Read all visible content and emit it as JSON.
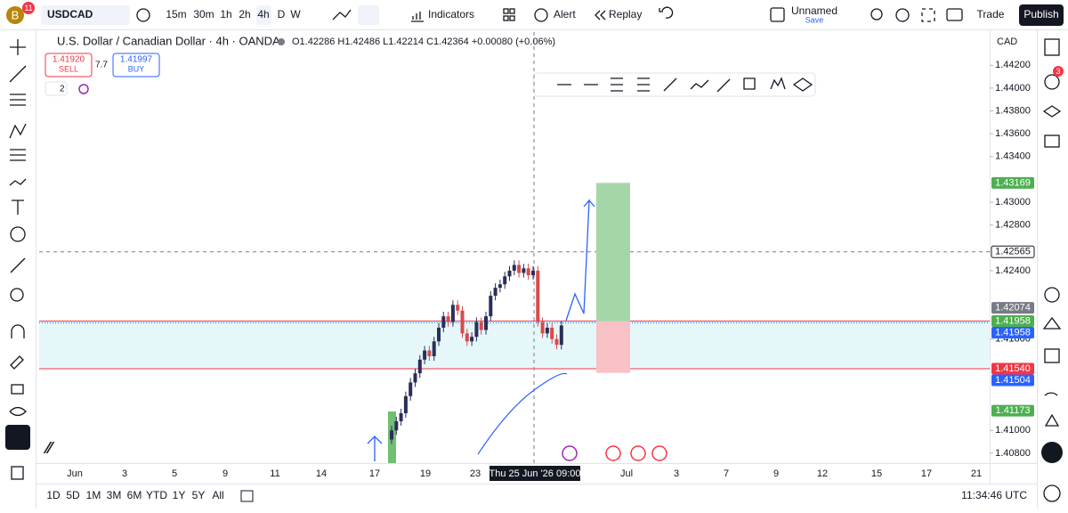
{
  "toolbar": {
    "avatar": "B",
    "badge": "11",
    "symbol": "USDCAD",
    "timeframes": [
      "15m",
      "30m",
      "1h",
      "2h",
      "4h",
      "D",
      "W"
    ],
    "active_timeframe": "4h",
    "indicators": "Indicators",
    "alert": "Alert",
    "replay": "Replay",
    "layout_name": "Unnamed",
    "save": "Save",
    "trade": "Trade",
    "publish": "Publish",
    "alerts_badge": "3"
  },
  "header": {
    "title": "U.S. Dollar / Canadian Dollar · 4h · OANDA",
    "ohlc": "O1.42286 H1.42486 L1.42214 C1.42364 +0.00080 (+0.06%)",
    "currency": "CAD",
    "indicators_count": "2"
  },
  "trade": {
    "sell_price": "1.41920",
    "sell": "SELL",
    "spread": "7.7",
    "buy_price": "1.41997",
    "buy": "BUY"
  },
  "chart_data": {
    "type": "candlestick",
    "up_color": "#2a2e5a",
    "down_color": "#d84a4a",
    "open": [
      1.4092,
      1.41,
      1.4108,
      1.4115,
      1.413,
      1.4142,
      1.415,
      1.4162,
      1.417,
      1.4165,
      1.4178,
      1.419,
      1.42,
      1.4195,
      1.421,
      1.4205,
      1.4185,
      1.4178,
      1.4182,
      1.4195,
      1.4188,
      1.42,
      1.4218,
      1.4225,
      1.4228,
      1.4235,
      1.424,
      1.4245,
      1.4238,
      1.4242,
      1.4236,
      1.424,
      1.4195,
      1.4185,
      1.419,
      1.418,
      1.4175
    ],
    "high": [
      1.4104,
      1.4112,
      1.4119,
      1.4134,
      1.4146,
      1.4154,
      1.4166,
      1.4174,
      1.4174,
      1.4182,
      1.4194,
      1.4204,
      1.4204,
      1.4214,
      1.4214,
      1.4209,
      1.4189,
      1.4186,
      1.4199,
      1.4199,
      1.4204,
      1.4222,
      1.4229,
      1.4232,
      1.4239,
      1.4244,
      1.4249,
      1.4249,
      1.4246,
      1.4246,
      1.4244,
      1.4244,
      1.4199,
      1.4194,
      1.4194,
      1.4184,
      1.4196
    ],
    "low": [
      1.4088,
      1.4096,
      1.4104,
      1.4111,
      1.4126,
      1.4138,
      1.4146,
      1.4158,
      1.4161,
      1.4161,
      1.4174,
      1.4186,
      1.4191,
      1.4191,
      1.4201,
      1.4181,
      1.4174,
      1.4174,
      1.4178,
      1.4184,
      1.4184,
      1.4196,
      1.4214,
      1.4221,
      1.4224,
      1.4231,
      1.4236,
      1.4234,
      1.4234,
      1.4232,
      1.4232,
      1.4191,
      1.4181,
      1.4181,
      1.4176,
      1.4171,
      1.4171
    ],
    "close": [
      1.41,
      1.4108,
      1.4115,
      1.413,
      1.4142,
      1.415,
      1.4162,
      1.417,
      1.4165,
      1.4178,
      1.419,
      1.42,
      1.4195,
      1.421,
      1.4205,
      1.4185,
      1.4178,
      1.4182,
      1.4195,
      1.4188,
      1.42,
      1.4218,
      1.4225,
      1.4228,
      1.4235,
      1.424,
      1.4245,
      1.4238,
      1.4242,
      1.4236,
      1.424,
      1.4195,
      1.4185,
      1.419,
      1.418,
      1.4175,
      1.4192
    ],
    "ylim": [
      1.40713,
      1.44491
    ],
    "yticks": [
      {
        "value": 1.442,
        "label": "1.44200"
      },
      {
        "value": 1.44,
        "label": "1.44000"
      },
      {
        "value": 1.438,
        "label": "1.43800"
      },
      {
        "value": 1.436,
        "label": "1.43600"
      },
      {
        "value": 1.434,
        "label": "1.43400"
      },
      {
        "value": 1.43,
        "label": "1.43000"
      },
      {
        "value": 1.428,
        "label": "1.42800"
      },
      {
        "value": 1.424,
        "label": "1.42400"
      },
      {
        "value": 1.418,
        "label": "1.41800"
      },
      {
        "value": 1.41,
        "label": "1.41000"
      },
      {
        "value": 1.408,
        "label": "1.40800"
      }
    ],
    "x_labels": [
      "Jun",
      "3",
      "5",
      "9",
      "11",
      "14",
      "17",
      "19",
      "23",
      "Jul",
      "3",
      "7",
      "9",
      "12",
      "15",
      "17",
      "21"
    ],
    "crosshair_label": "Thu 25 Jun '26  09:00",
    "price_labels": [
      {
        "value": 1.43169,
        "label": "1.43169",
        "color": "#4caf50"
      },
      {
        "value": 1.42565,
        "label": "1.42565",
        "color": "#ffffff"
      },
      {
        "value": 1.42074,
        "label": "1.42074",
        "color": "#787b86"
      },
      {
        "value": 1.41958,
        "label": "1.41958",
        "color": "#4caf50"
      },
      {
        "value": 1.41958,
        "label": "1.41958",
        "color": "#2962ff"
      },
      {
        "value": 1.4154,
        "label": "1.41540",
        "color": "#f23645"
      },
      {
        "value": 1.41504,
        "label": "1.41504",
        "color": "#2962ff"
      },
      {
        "value": 1.41173,
        "label": "1.41173",
        "color": "#4caf50"
      }
    ]
  },
  "footer": {
    "ranges": [
      "1D",
      "5D",
      "1M",
      "3M",
      "6M",
      "YTD",
      "1Y",
      "5Y",
      "All"
    ],
    "clock": "11:34:46 UTC"
  }
}
